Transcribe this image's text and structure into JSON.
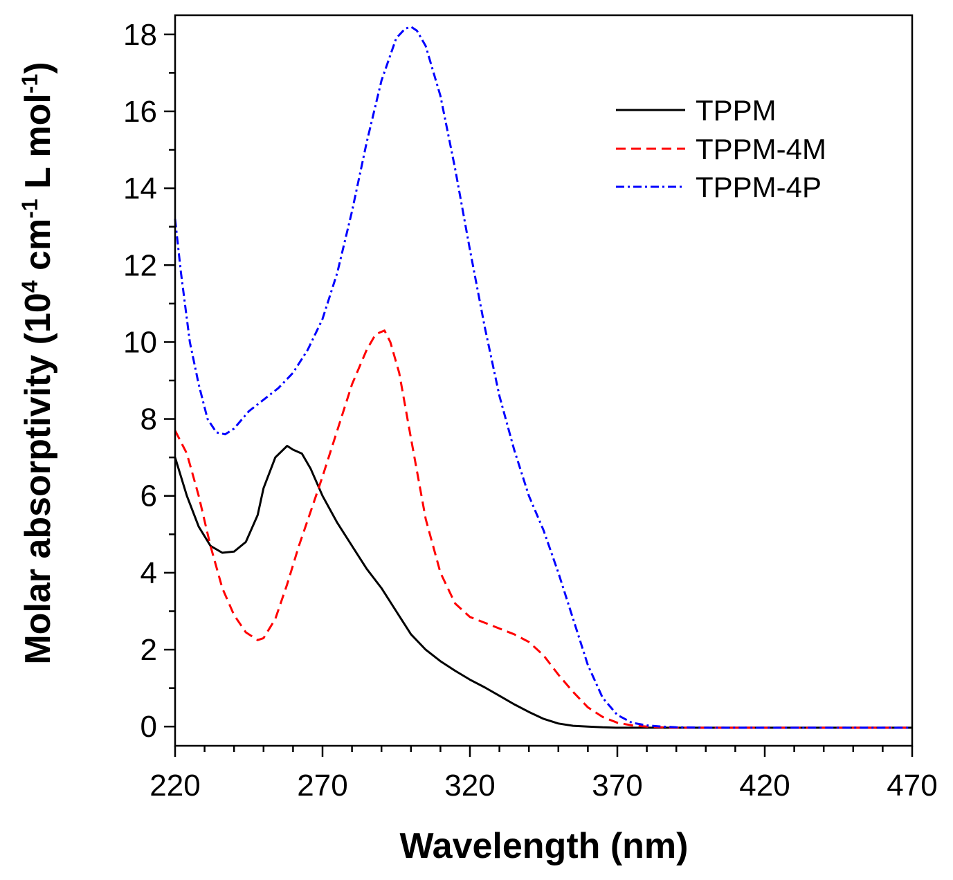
{
  "chart_data": {
    "type": "line",
    "title": "",
    "xlabel": "Wavelength (nm)",
    "ylabel": {
      "p1": "Molar absorptivity (10",
      "sup1": "4",
      "p2": " cm",
      "sup2": "-1",
      "p3": " L mol",
      "sup3": "-1",
      "p4": ")"
    },
    "xlim": [
      220,
      470
    ],
    "ylim": [
      -0.5,
      18.5
    ],
    "xticks": [
      220,
      270,
      320,
      370,
      420,
      470
    ],
    "xtick_labels": [
      "220",
      "270",
      "320",
      "370",
      "420",
      "470"
    ],
    "yticks": [
      0,
      2,
      4,
      6,
      8,
      10,
      12,
      14,
      16,
      18
    ],
    "ytick_labels": [
      "0",
      "2",
      "4",
      "6",
      "8",
      "10",
      "12",
      "14",
      "16",
      "18"
    ],
    "grid": false,
    "legend_position": "top-right",
    "series": [
      {
        "name": "TPPM",
        "color": "#000000",
        "style": "solid",
        "x": [
          220,
          224,
          228,
          232,
          236,
          240,
          244,
          248,
          250,
          254,
          258,
          260,
          263,
          266,
          270,
          275,
          280,
          285,
          290,
          295,
          300,
          305,
          310,
          315,
          320,
          325,
          330,
          335,
          340,
          345,
          350,
          355,
          360,
          365,
          370,
          380,
          400,
          420,
          440,
          470
        ],
        "values": [
          7.0,
          6.0,
          5.2,
          4.7,
          4.52,
          4.55,
          4.8,
          5.5,
          6.2,
          7.0,
          7.3,
          7.2,
          7.1,
          6.7,
          6.0,
          5.3,
          4.7,
          4.1,
          3.6,
          3.0,
          2.4,
          2.0,
          1.7,
          1.45,
          1.22,
          1.02,
          0.8,
          0.58,
          0.38,
          0.2,
          0.08,
          0.02,
          0.0,
          -0.02,
          -0.03,
          -0.03,
          -0.03,
          -0.03,
          -0.03,
          -0.03
        ]
      },
      {
        "name": "TPPM-4M",
        "color": "#ff0000",
        "style": "dashed",
        "x": [
          220,
          224,
          228,
          232,
          236,
          240,
          244,
          248,
          250,
          254,
          258,
          262,
          266,
          270,
          275,
          280,
          285,
          288,
          291,
          293,
          296,
          300,
          305,
          310,
          315,
          320,
          325,
          330,
          335,
          340,
          345,
          350,
          355,
          360,
          365,
          370,
          375,
          380,
          385,
          390,
          400,
          420,
          440,
          470
        ],
        "values": [
          7.7,
          7.1,
          6.0,
          4.7,
          3.6,
          2.9,
          2.45,
          2.25,
          2.3,
          2.8,
          3.7,
          4.7,
          5.6,
          6.5,
          7.7,
          8.9,
          9.8,
          10.2,
          10.3,
          10.0,
          9.2,
          7.5,
          5.4,
          4.0,
          3.2,
          2.85,
          2.7,
          2.55,
          2.4,
          2.2,
          1.85,
          1.35,
          0.9,
          0.5,
          0.25,
          0.1,
          0.03,
          0.0,
          -0.02,
          -0.03,
          -0.03,
          -0.03,
          -0.03,
          -0.03
        ]
      },
      {
        "name": "TPPM-4P",
        "color": "#0000ff",
        "style": "dashdot",
        "x": [
          220,
          222,
          225,
          228,
          231,
          234,
          237,
          240,
          245,
          250,
          255,
          260,
          265,
          270,
          275,
          280,
          285,
          290,
          295,
          298,
          300,
          302,
          305,
          310,
          315,
          320,
          325,
          330,
          335,
          340,
          345,
          350,
          355,
          360,
          365,
          370,
          375,
          380,
          385,
          390,
          400,
          420,
          440,
          470
        ],
        "values": [
          13.2,
          11.8,
          10.0,
          8.9,
          8.0,
          7.65,
          7.6,
          7.75,
          8.2,
          8.5,
          8.8,
          9.2,
          9.8,
          10.6,
          11.8,
          13.4,
          15.2,
          16.8,
          17.9,
          18.15,
          18.2,
          18.1,
          17.7,
          16.4,
          14.5,
          12.4,
          10.4,
          8.6,
          7.2,
          6.0,
          5.1,
          4.0,
          2.8,
          1.6,
          0.75,
          0.3,
          0.1,
          0.03,
          0.0,
          -0.02,
          -0.03,
          -0.03,
          -0.03,
          -0.03
        ]
      }
    ]
  }
}
